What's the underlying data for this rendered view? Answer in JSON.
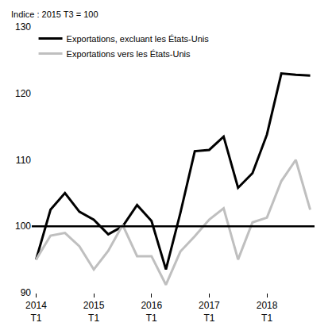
{
  "chart_data": {
    "type": "line",
    "ylabel": "Indice : 2015 T3 = 100",
    "categories": [
      "2014\nT1",
      null,
      null,
      null,
      "2015\nT1",
      null,
      null,
      null,
      "2016\nT1",
      null,
      null,
      null,
      "2017\nT1",
      null,
      null,
      null,
      "2018\nT1",
      null,
      null,
      null
    ],
    "series": [
      {
        "name": "Exportations, excluant les États-Unis",
        "color": "#000000",
        "values": [
          95,
          102.5,
          105,
          102.2,
          101,
          98.8,
          100,
          103.2,
          100.8,
          93.5,
          102,
          111.3,
          111.5,
          113.5,
          105.8,
          108,
          113.8,
          123,
          122.8,
          122.7
        ]
      },
      {
        "name": "Exportations vers les États-Unis",
        "color": "#bfbfbf",
        "values": [
          95,
          98.6,
          99,
          97,
          93.5,
          96.3,
          100.2,
          95.5,
          95.5,
          91.2,
          96.2,
          98.5,
          101,
          102.7,
          95,
          100.6,
          101.3,
          106.8,
          110,
          102.5
        ]
      }
    ],
    "reference_line": 100,
    "ylim": [
      90,
      130
    ],
    "yticks": [
      90,
      100,
      110,
      120,
      130
    ],
    "grid": false,
    "legend": "top left"
  }
}
